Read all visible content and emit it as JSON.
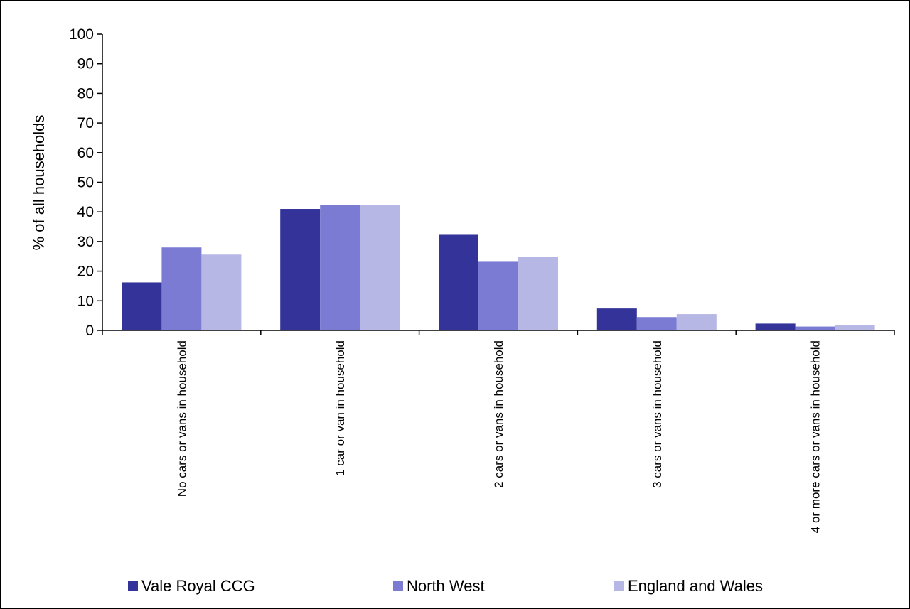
{
  "chart_data": {
    "type": "bar",
    "title": "",
    "ylabel": "% of all households",
    "xlabel": "",
    "ylim": [
      0,
      100
    ],
    "yticks": [
      0,
      10,
      20,
      30,
      40,
      50,
      60,
      70,
      80,
      90,
      100
    ],
    "categories": [
      "No cars or vans in household",
      "1 car or van in household",
      "2 cars or vans in household",
      "3 cars or vans in household",
      "4 or more cars or vans in household"
    ],
    "series": [
      {
        "name": "Vale Royal CCG",
        "color": "#333399",
        "values": [
          16.2,
          41.0,
          32.5,
          7.4,
          2.3
        ]
      },
      {
        "name": "North West",
        "color": "#7b7bd4",
        "values": [
          28.0,
          42.4,
          23.4,
          4.5,
          1.3
        ]
      },
      {
        "name": "England and Wales",
        "color": "#b7b7e6",
        "values": [
          25.6,
          42.2,
          24.7,
          5.5,
          1.8
        ]
      }
    ],
    "legend_position": "bottom",
    "grid": false
  }
}
